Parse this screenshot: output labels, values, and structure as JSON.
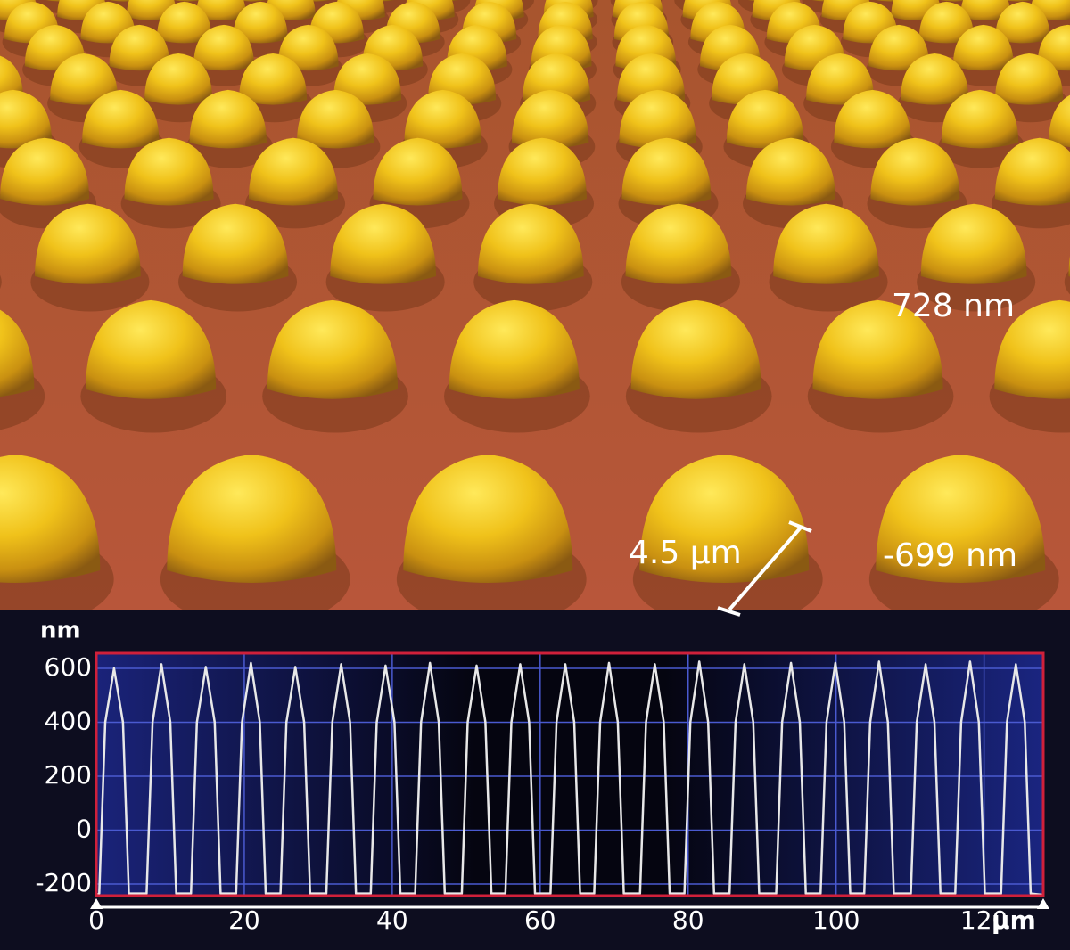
{
  "chart_data": {
    "type": "line",
    "annotations": [
      "728 nm",
      "-699 nm",
      "4.5 µm"
    ],
    "ylabel": "nm",
    "xlabel": "µm",
    "color": "#e8e8e8",
    "xlim": [
      0,
      128
    ],
    "ylim": [
      -243,
      656
    ],
    "xticks": [
      0,
      20,
      40,
      60,
      80,
      100,
      120
    ],
    "yticks": [
      -200,
      0,
      200,
      400,
      600
    ],
    "grid": true,
    "x": [
      0,
      0.4,
      1.2,
      2.4,
      3.6,
      4.4,
      6.8,
      7.6,
      8.8,
      10.0,
      10.8,
      12.8,
      13.6,
      14.8,
      16.0,
      16.8,
      18.9,
      19.7,
      20.9,
      22.1,
      22.9,
      24.9,
      25.7,
      26.9,
      28.1,
      28.9,
      31.1,
      31.9,
      33.1,
      34.3,
      35.1,
      37.1,
      37.9,
      39.1,
      40.3,
      41.1,
      43.1,
      43.9,
      45.1,
      46.3,
      47.1,
      49.4,
      50.2,
      51.4,
      52.6,
      53.4,
      55.3,
      56.1,
      57.3,
      58.5,
      59.3,
      61.4,
      62.2,
      63.4,
      64.6,
      65.4,
      67.3,
      68.1,
      69.3,
      70.5,
      71.3,
      73.5,
      74.3,
      75.5,
      76.7,
      77.5,
      79.5,
      80.3,
      81.5,
      82.7,
      83.5,
      85.6,
      86.4,
      87.6,
      88.8,
      89.6,
      91.9,
      92.7,
      93.9,
      95.1,
      95.9,
      97.9,
      98.7,
      99.9,
      101.1,
      101.9,
      103.8,
      104.6,
      105.8,
      107.0,
      107.8,
      110.1,
      110.9,
      112.1,
      113.3,
      114.1,
      116.1,
      116.9,
      118.1,
      119.3,
      120.1,
      122.3,
      123.1,
      124.3,
      125.5,
      126.3,
      128
    ],
    "values": [
      -240,
      -235,
      400,
      600,
      400,
      -235,
      -235,
      400,
      615,
      400,
      -235,
      -235,
      400,
      605,
      400,
      -235,
      -235,
      400,
      620,
      400,
      -235,
      -235,
      400,
      605,
      400,
      -235,
      -235,
      400,
      615,
      400,
      -235,
      -235,
      400,
      610,
      400,
      -235,
      -235,
      400,
      620,
      400,
      -235,
      -235,
      400,
      610,
      400,
      -235,
      -235,
      400,
      615,
      400,
      -235,
      -235,
      400,
      615,
      400,
      -235,
      -235,
      400,
      620,
      400,
      -235,
      -235,
      400,
      615,
      400,
      -235,
      -235,
      400,
      625,
      400,
      -235,
      -235,
      400,
      615,
      400,
      -235,
      -235,
      400,
      620,
      400,
      -235,
      -235,
      400,
      620,
      400,
      -235,
      -235,
      400,
      625,
      400,
      -235,
      -235,
      400,
      615,
      400,
      -235,
      -235,
      400,
      625,
      400,
      -235,
      -235,
      400,
      615,
      400,
      -235,
      -240
    ]
  }
}
